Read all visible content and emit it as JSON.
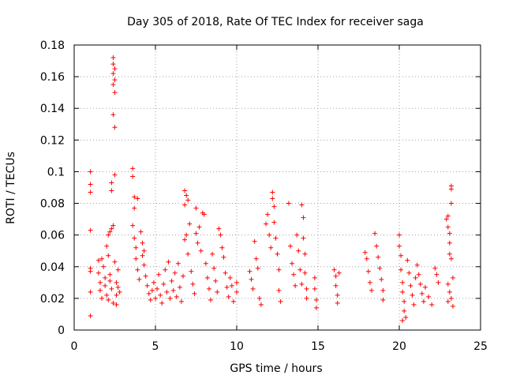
{
  "chart_data": {
    "type": "scatter",
    "title": "Day 305 of 2018, Rate Of TEC Index for receiver saga",
    "xlabel": "GPS time / hours",
    "ylabel": "ROTI / TECUs",
    "xlim": [
      0,
      25
    ],
    "ylim": [
      0,
      0.18
    ],
    "xticks": [
      0,
      5,
      10,
      15,
      20,
      25
    ],
    "xtick_labels": [
      "0",
      "5",
      "10",
      "15",
      "20",
      "25"
    ],
    "yticks": [
      0,
      0.02,
      0.04,
      0.06,
      0.08,
      0.1,
      0.12,
      0.14,
      0.16,
      0.18
    ],
    "ytick_labels": [
      "0",
      "0.02",
      "0.04",
      "0.06",
      "0.08",
      "0.1",
      "0.12",
      "0.14",
      "0.16",
      "0.18"
    ],
    "grid": true,
    "marker": "+",
    "color": "#ff0000",
    "series": [
      {
        "points": [
          [
            1.0,
            0.1
          ],
          [
            1.0,
            0.092
          ],
          [
            1.0,
            0.087
          ],
          [
            1.0,
            0.063
          ],
          [
            1.0,
            0.039
          ],
          [
            1.0,
            0.037
          ],
          [
            1.0,
            0.024
          ],
          [
            1.0,
            0.009
          ],
          [
            1.5,
            0.044
          ],
          [
            1.5,
            0.036
          ],
          [
            1.6,
            0.03
          ],
          [
            1.6,
            0.025
          ],
          [
            1.7,
            0.02
          ],
          [
            1.7,
            0.045
          ],
          [
            1.8,
            0.04
          ],
          [
            1.9,
            0.033
          ],
          [
            1.9,
            0.028
          ],
          [
            2.0,
            0.022
          ],
          [
            2.0,
            0.053
          ],
          [
            2.1,
            0.06
          ],
          [
            2.1,
            0.047
          ],
          [
            2.2,
            0.062
          ],
          [
            2.2,
            0.035
          ],
          [
            2.3,
            0.064
          ],
          [
            2.3,
            0.093
          ],
          [
            2.3,
            0.088
          ],
          [
            2.4,
            0.172
          ],
          [
            2.4,
            0.168
          ],
          [
            2.4,
            0.162
          ],
          [
            2.4,
            0.155
          ],
          [
            2.5,
            0.165
          ],
          [
            2.5,
            0.158
          ],
          [
            2.5,
            0.15
          ],
          [
            2.4,
            0.136
          ],
          [
            2.5,
            0.128
          ],
          [
            2.5,
            0.098
          ],
          [
            2.4,
            0.066
          ],
          [
            2.5,
            0.043
          ],
          [
            2.6,
            0.03
          ],
          [
            2.6,
            0.022
          ],
          [
            2.4,
            0.017
          ],
          [
            2.3,
            0.026
          ],
          [
            2.2,
            0.031
          ],
          [
            2.1,
            0.019
          ],
          [
            2.7,
            0.027
          ],
          [
            2.7,
            0.038
          ],
          [
            2.8,
            0.024
          ],
          [
            2.6,
            0.016
          ],
          [
            3.6,
            0.102
          ],
          [
            3.6,
            0.097
          ],
          [
            3.7,
            0.084
          ],
          [
            3.7,
            0.077
          ],
          [
            3.6,
            0.066
          ],
          [
            3.7,
            0.058
          ],
          [
            3.8,
            0.052
          ],
          [
            3.8,
            0.045
          ],
          [
            3.9,
            0.083
          ],
          [
            3.9,
            0.038
          ],
          [
            4.0,
            0.032
          ],
          [
            4.1,
            0.062
          ],
          [
            4.2,
            0.055
          ],
          [
            4.2,
            0.047
          ],
          [
            4.3,
            0.041
          ],
          [
            4.3,
            0.05
          ],
          [
            4.4,
            0.034
          ],
          [
            4.5,
            0.028
          ],
          [
            4.6,
            0.023
          ],
          [
            4.7,
            0.019
          ],
          [
            4.8,
            0.025
          ],
          [
            4.9,
            0.03
          ],
          [
            5.0,
            0.02
          ],
          [
            5.1,
            0.026
          ],
          [
            5.2,
            0.035
          ],
          [
            5.3,
            0.022
          ],
          [
            5.4,
            0.017
          ],
          [
            5.5,
            0.029
          ],
          [
            5.6,
            0.038
          ],
          [
            5.7,
            0.024
          ],
          [
            5.8,
            0.043
          ],
          [
            5.9,
            0.02
          ],
          [
            6.0,
            0.031
          ],
          [
            6.1,
            0.025
          ],
          [
            6.2,
            0.036
          ],
          [
            6.3,
            0.021
          ],
          [
            6.4,
            0.042
          ],
          [
            6.5,
            0.027
          ],
          [
            6.6,
            0.018
          ],
          [
            6.7,
            0.034
          ],
          [
            6.8,
            0.088
          ],
          [
            6.9,
            0.085
          ],
          [
            6.8,
            0.079
          ],
          [
            7.0,
            0.082
          ],
          [
            6.9,
            0.06
          ],
          [
            6.8,
            0.057
          ],
          [
            7.1,
            0.067
          ],
          [
            7.0,
            0.048
          ],
          [
            7.2,
            0.037
          ],
          [
            7.3,
            0.029
          ],
          [
            7.4,
            0.023
          ],
          [
            7.5,
            0.077
          ],
          [
            7.5,
            0.061
          ],
          [
            7.6,
            0.055
          ],
          [
            7.7,
            0.065
          ],
          [
            7.8,
            0.05
          ],
          [
            7.9,
            0.074
          ],
          [
            8.0,
            0.073
          ],
          [
            8.1,
            0.042
          ],
          [
            8.2,
            0.033
          ],
          [
            8.3,
            0.026
          ],
          [
            8.4,
            0.019
          ],
          [
            8.5,
            0.048
          ],
          [
            8.6,
            0.039
          ],
          [
            8.7,
            0.031
          ],
          [
            8.8,
            0.024
          ],
          [
            8.9,
            0.064
          ],
          [
            9.0,
            0.06
          ],
          [
            9.1,
            0.052
          ],
          [
            9.2,
            0.046
          ],
          [
            9.3,
            0.036
          ],
          [
            9.4,
            0.027
          ],
          [
            9.5,
            0.021
          ],
          [
            9.6,
            0.033
          ],
          [
            9.7,
            0.028
          ],
          [
            9.8,
            0.018
          ],
          [
            10.0,
            0.03
          ],
          [
            10.0,
            0.024
          ],
          [
            10.8,
            0.037
          ],
          [
            10.9,
            0.032
          ],
          [
            11.0,
            0.026
          ],
          [
            11.1,
            0.056
          ],
          [
            11.2,
            0.045
          ],
          [
            11.3,
            0.039
          ],
          [
            11.4,
            0.02
          ],
          [
            11.5,
            0.016
          ],
          [
            11.8,
            0.067
          ],
          [
            11.9,
            0.073
          ],
          [
            12.0,
            0.06
          ],
          [
            12.1,
            0.052
          ],
          [
            12.2,
            0.083
          ],
          [
            12.2,
            0.087
          ],
          [
            12.3,
            0.078
          ],
          [
            12.3,
            0.068
          ],
          [
            12.4,
            0.058
          ],
          [
            12.5,
            0.048
          ],
          [
            12.6,
            0.038
          ],
          [
            12.6,
            0.025
          ],
          [
            12.7,
            0.018
          ],
          [
            13.2,
            0.08
          ],
          [
            13.3,
            0.053
          ],
          [
            13.4,
            0.042
          ],
          [
            13.5,
            0.035
          ],
          [
            13.6,
            0.028
          ],
          [
            13.7,
            0.06
          ],
          [
            13.8,
            0.05
          ],
          [
            13.9,
            0.038
          ],
          [
            14.0,
            0.029
          ],
          [
            14.0,
            0.079
          ],
          [
            14.1,
            0.071
          ],
          [
            14.1,
            0.058
          ],
          [
            14.2,
            0.048
          ],
          [
            14.2,
            0.036
          ],
          [
            14.3,
            0.026
          ],
          [
            14.3,
            0.02
          ],
          [
            14.8,
            0.033
          ],
          [
            14.8,
            0.026
          ],
          [
            14.9,
            0.019
          ],
          [
            14.9,
            0.014
          ],
          [
            16.0,
            0.038
          ],
          [
            16.1,
            0.034
          ],
          [
            16.1,
            0.028
          ],
          [
            16.2,
            0.022
          ],
          [
            16.2,
            0.017
          ],
          [
            16.3,
            0.036
          ],
          [
            17.9,
            0.049
          ],
          [
            18.0,
            0.045
          ],
          [
            18.1,
            0.037
          ],
          [
            18.2,
            0.03
          ],
          [
            18.3,
            0.025
          ],
          [
            18.5,
            0.061
          ],
          [
            18.6,
            0.053
          ],
          [
            18.7,
            0.046
          ],
          [
            18.8,
            0.039
          ],
          [
            18.9,
            0.032
          ],
          [
            19.0,
            0.025
          ],
          [
            19.0,
            0.019
          ],
          [
            20.0,
            0.06
          ],
          [
            20.0,
            0.053
          ],
          [
            20.1,
            0.047
          ],
          [
            20.1,
            0.038
          ],
          [
            20.2,
            0.03
          ],
          [
            20.2,
            0.024
          ],
          [
            20.3,
            0.018
          ],
          [
            20.3,
            0.012
          ],
          [
            20.2,
            0.006
          ],
          [
            20.4,
            0.008
          ],
          [
            20.5,
            0.044
          ],
          [
            20.6,
            0.036
          ],
          [
            20.7,
            0.028
          ],
          [
            20.8,
            0.022
          ],
          [
            20.9,
            0.016
          ],
          [
            21.0,
            0.033
          ],
          [
            21.1,
            0.041
          ],
          [
            21.2,
            0.035
          ],
          [
            21.3,
            0.029
          ],
          [
            21.4,
            0.023
          ],
          [
            21.5,
            0.018
          ],
          [
            21.6,
            0.027
          ],
          [
            21.8,
            0.021
          ],
          [
            22.0,
            0.016
          ],
          [
            22.2,
            0.039
          ],
          [
            22.3,
            0.035
          ],
          [
            22.4,
            0.03
          ],
          [
            22.9,
            0.07
          ],
          [
            23.0,
            0.072
          ],
          [
            23.0,
            0.065
          ],
          [
            23.1,
            0.061
          ],
          [
            23.1,
            0.055
          ],
          [
            23.2,
            0.091
          ],
          [
            23.2,
            0.089
          ],
          [
            23.2,
            0.08
          ],
          [
            23.1,
            0.048
          ],
          [
            23.2,
            0.045
          ],
          [
            23.3,
            0.033
          ],
          [
            23.0,
            0.029
          ],
          [
            23.1,
            0.024
          ],
          [
            23.2,
            0.02
          ],
          [
            23.3,
            0.015
          ],
          [
            23.0,
            0.018
          ]
        ]
      }
    ]
  }
}
